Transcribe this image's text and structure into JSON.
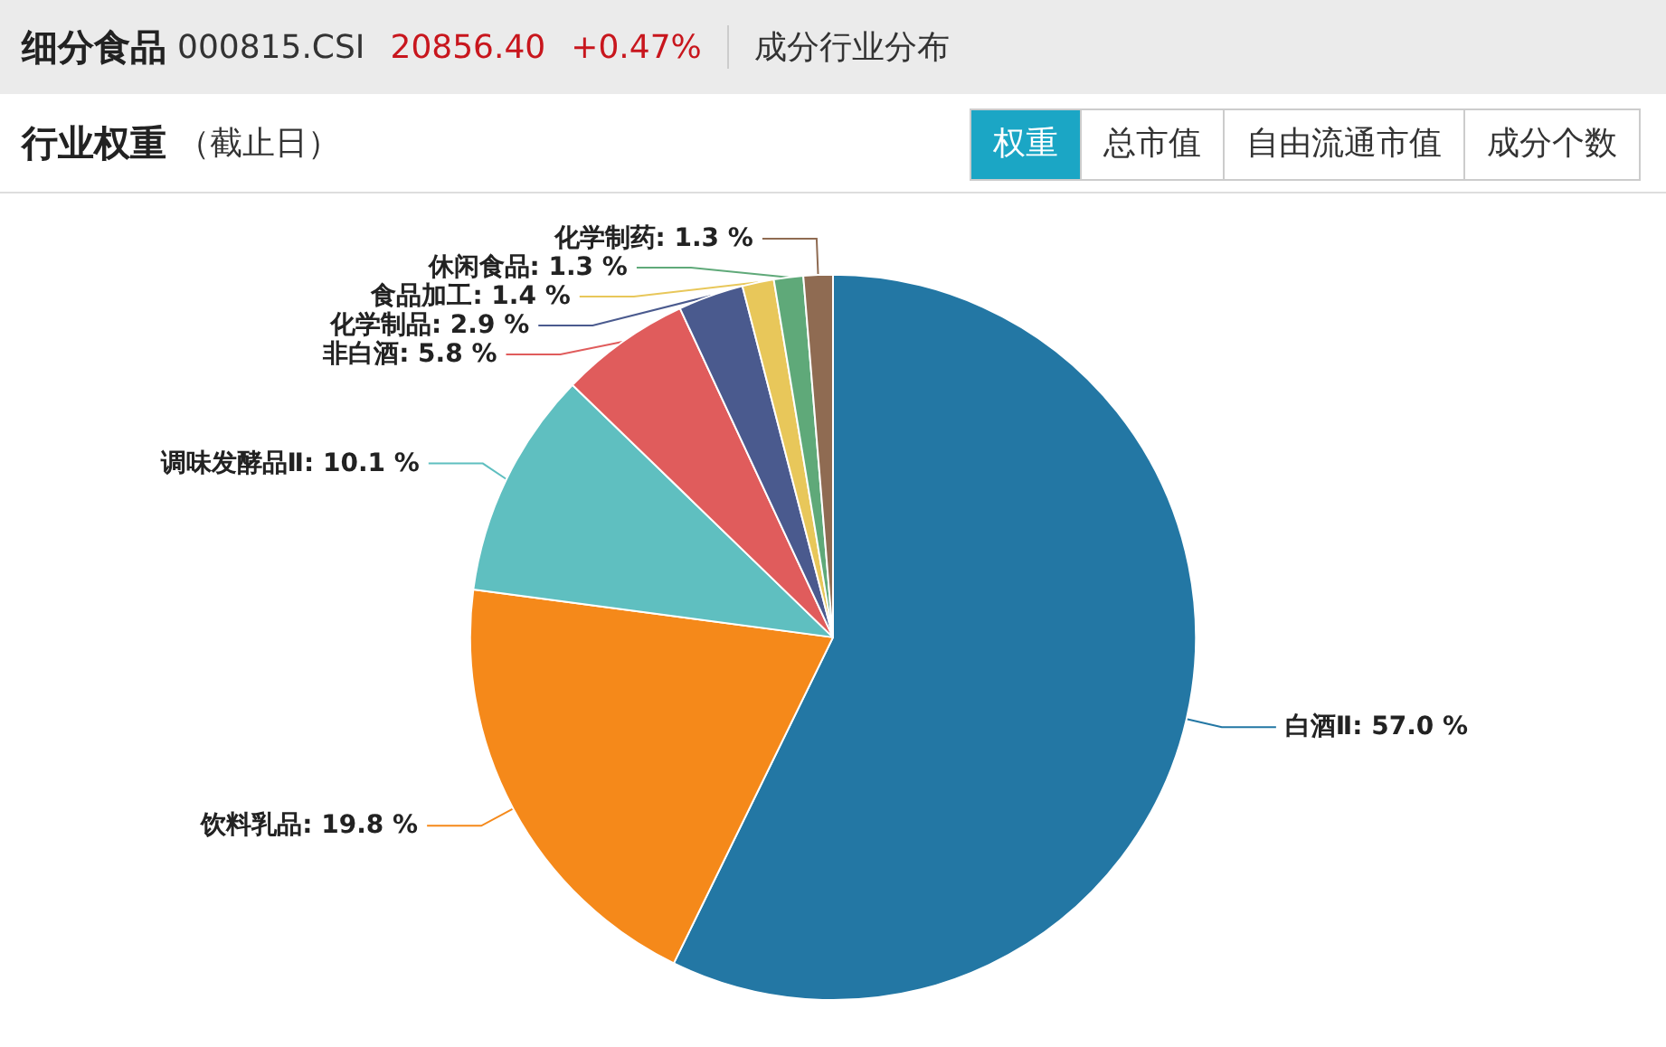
{
  "chart_data": {
    "type": "pie",
    "title": "行业权重",
    "subtitle": "（截止日）",
    "annotations": [
      "细分食品",
      "000815.CSI",
      "20856.40",
      "+0.47%",
      "成分行业分布",
      "权重",
      "总市值",
      "自由流通市值",
      "成分个数"
    ],
    "categories": [
      "白酒Ⅱ",
      "饮料乳品",
      "调味发酵品Ⅱ",
      "非白酒",
      "化学制品",
      "食品加工",
      "休闲食品",
      "化学制药"
    ],
    "values": [
      57.0,
      19.8,
      10.1,
      5.8,
      2.9,
      1.4,
      1.3,
      1.3
    ],
    "colors": [
      "#2377a4",
      "#f5891a",
      "#5fbfc0",
      "#e05c5c",
      "#4a5a8e",
      "#e8c75a",
      "#5fa979",
      "#8f6b52"
    ],
    "value_labels": [
      ": 57.0 %",
      ": 19.8 %",
      ": 10.1 %",
      ": 5.8 %",
      ": 2.9 %",
      ": 1.4 %",
      ": 1.3 %",
      ": 1.3 %"
    ]
  }
}
